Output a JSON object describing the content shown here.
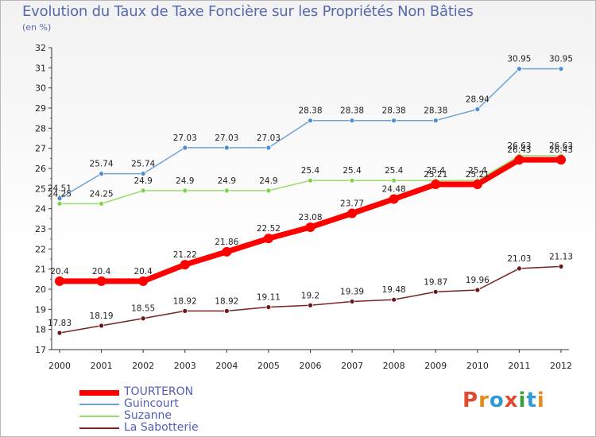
{
  "title": "Evolution du Taux de Taxe Foncière sur les Propriétés Non Bâties",
  "unit_label": "(en %)",
  "logo": {
    "text": "Proxiti",
    "colors": [
      "#e04a2f",
      "#e38b1c",
      "#2e9ad6",
      "#e04a2f",
      "#3a9f3a",
      "#2e9ad6",
      "#e38b1c"
    ]
  },
  "chart_data": {
    "type": "line",
    "title": "Evolution du Taux de Taxe Foncière sur les Propriétés Non Bâties",
    "ylabel": "(en %)",
    "x": [
      "2000",
      "2001",
      "2002",
      "2003",
      "2004",
      "2005",
      "2006",
      "2007",
      "2008",
      "2009",
      "2010",
      "2011",
      "2012"
    ],
    "ylim": [
      17,
      32
    ],
    "yticks": [
      17,
      18,
      19,
      20,
      21,
      22,
      23,
      24,
      25,
      26,
      27,
      28,
      29,
      30,
      31,
      32
    ],
    "grid": false,
    "legend_position": "bottom-left",
    "series": [
      {
        "name": "TOURTERON",
        "color": "#ff0000",
        "marker": "#ff0000",
        "values": [
          20.4,
          20.4,
          20.4,
          21.22,
          21.86,
          22.52,
          23.08,
          23.77,
          24.48,
          25.21,
          25.21,
          26.43,
          26.43
        ]
      },
      {
        "name": "Guincourt",
        "color": "#6ea3d4",
        "marker": "#4c8ccf",
        "values": [
          24.51,
          25.74,
          25.74,
          27.03,
          27.03,
          27.03,
          28.38,
          28.38,
          28.38,
          28.38,
          28.94,
          30.95,
          30.95
        ]
      },
      {
        "name": "Suzanne",
        "color": "#98dd6a",
        "marker": "#7fd24a",
        "values": [
          24.25,
          24.25,
          24.9,
          24.9,
          24.9,
          24.9,
          25.4,
          25.4,
          25.4,
          25.4,
          25.4,
          26.63,
          26.63
        ]
      },
      {
        "name": "La Sabotterie",
        "color": "#7a2222",
        "marker": "#6b1616",
        "values": [
          17.83,
          18.19,
          18.55,
          18.92,
          18.92,
          19.11,
          19.2,
          19.39,
          19.48,
          19.87,
          19.96,
          21.03,
          21.13
        ]
      }
    ]
  }
}
